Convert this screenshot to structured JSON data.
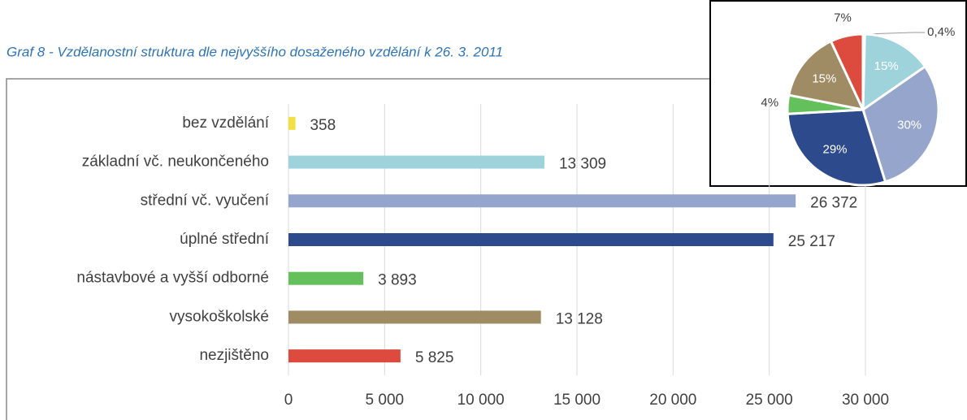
{
  "chart_data": [
    {
      "type": "bar",
      "title": "Graf 8 - Vzdělanostní struktura dle nejvyššího dosaženého vzdělání k 26. 3. 2011",
      "orientation": "horizontal",
      "categories": [
        "bez vzdělání",
        "základní vč. neukončeného",
        "střední vč. vyučení",
        "úplné střední",
        "nástavbové a vyšší odborné",
        "vysokoškolské",
        "nezjištěno"
      ],
      "values": [
        358,
        13309,
        26372,
        25217,
        3893,
        13128,
        5825
      ],
      "value_labels": [
        "358",
        "13 309",
        "26 372",
        "25 217",
        "3 893",
        "13 128",
        "5 825"
      ],
      "colors": [
        "#f0e040",
        "#9fd3dc",
        "#96a5cb",
        "#2c4a8c",
        "#63c05a",
        "#a08c64",
        "#dd4b3e"
      ],
      "xlim": [
        0,
        30000
      ],
      "xticks": [
        0,
        {
          "value": 5000,
          "label": "5 000"
        },
        {
          "value": 10000,
          "label": "10 000"
        },
        {
          "value": 15000,
          "label": "15 000"
        },
        {
          "value": 20000,
          "label": "20 000"
        },
        {
          "value": 25000,
          "label": "25 000"
        },
        {
          "value": 30000,
          "label": "30 000"
        }
      ],
      "grid": true
    },
    {
      "type": "pie",
      "values": [
        0.4,
        15,
        30,
        29,
        4,
        15,
        7
      ],
      "value_labels": [
        "0,4%",
        "15%",
        "30%",
        "29%",
        "4%",
        "15%",
        "7%"
      ],
      "colors": [
        "#f0e040",
        "#9fd3dc",
        "#96a5cb",
        "#2c4a8c",
        "#63c05a",
        "#a08c64",
        "#dd4b3e"
      ]
    }
  ]
}
